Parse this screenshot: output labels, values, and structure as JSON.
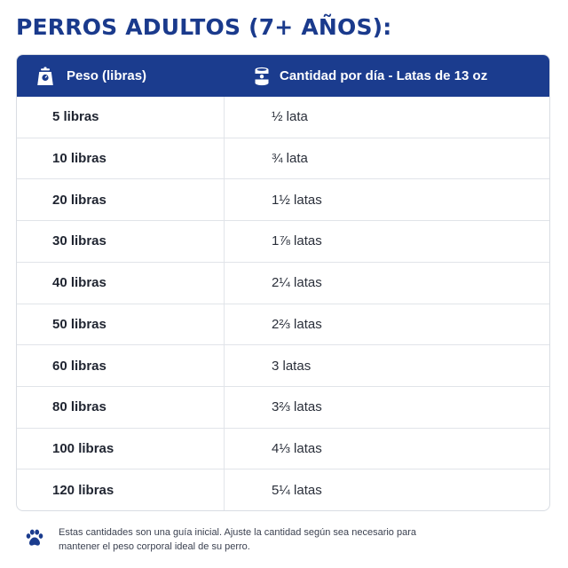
{
  "title": "PERROS ADULTOS (7+ AÑOS):",
  "table": {
    "headers": {
      "weight": {
        "icon": "scale-icon",
        "label": "Peso (libras)"
      },
      "amount": {
        "icon": "food-can-icon",
        "label": "Cantidad por día - Latas de 13 oz"
      }
    },
    "rows": [
      {
        "weight": "5 libras",
        "amount": "½ lata"
      },
      {
        "weight": "10 libras",
        "amount": "¾ lata"
      },
      {
        "weight": "20 libras",
        "amount": "1½ latas"
      },
      {
        "weight": "30 libras",
        "amount": "1⅞ latas"
      },
      {
        "weight": "40 libras",
        "amount": "2¼ latas"
      },
      {
        "weight": "50 libras",
        "amount": "2⅔ latas"
      },
      {
        "weight": "60 libras",
        "amount": "3 latas"
      },
      {
        "weight": "80 libras",
        "amount": "3⅔ latas"
      },
      {
        "weight": "100 libras",
        "amount": "4⅓ latas"
      },
      {
        "weight": "120 libras",
        "amount": "5¼ latas"
      }
    ]
  },
  "note": {
    "icon": "paw-icon",
    "text": "Estas cantidades son una guía inicial. Ajuste la cantidad según sea necesario para mantener el peso corporal ideal de su perro."
  },
  "colors": {
    "header_bg": "#1b3c8e",
    "title": "#1a3a8c",
    "border": "#e1e4e9"
  }
}
